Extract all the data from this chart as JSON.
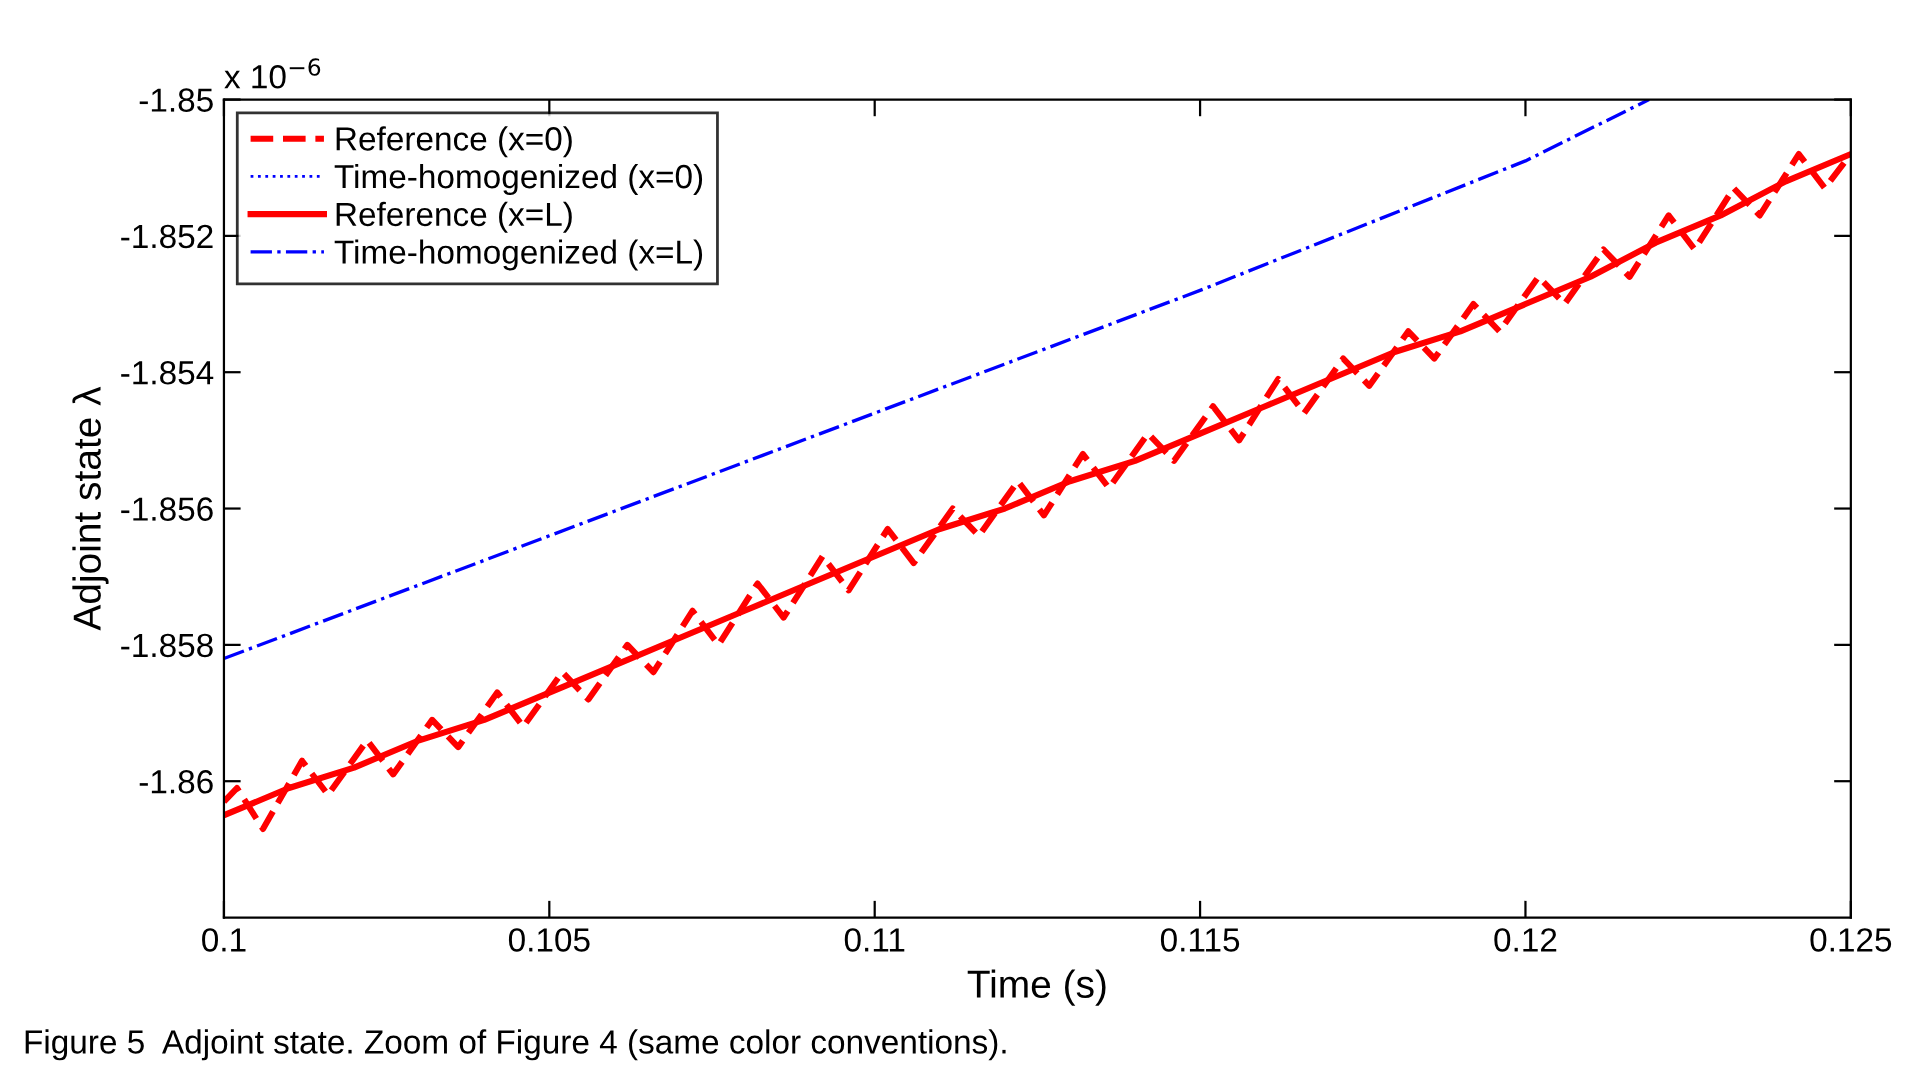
{
  "chart_data": {
    "type": "line",
    "xlabel": "Time (s)",
    "ylabel": "Adjoint state λ",
    "annotations": [
      "x 10$^{−6}$",
      "Figure 5  Adjoint state. Zoom of Figure 4 (same color conventions)."
    ],
    "xlim": [
      0.1,
      0.125
    ],
    "xticks": [
      0.1,
      0.105,
      0.11,
      0.115,
      0.12,
      0.125
    ],
    "ylim": [
      -1.862,
      -1.85
    ],
    "yticks": [
      -1.86,
      -1.858,
      -1.856,
      -1.854,
      -1.852,
      -1.85
    ],
    "grid": false,
    "legend": "top left",
    "marker": "none",
    "series": [
      {
        "name": "Reference (x=0)",
        "color": "#ff0000",
        "line_style": "dashed",
        "x": [
          0.1,
          0.1002,
          0.1006,
          0.1012,
          0.1016,
          0.1022,
          0.1026,
          0.1032,
          0.1036,
          0.1042,
          0.1046,
          0.1052,
          0.1056,
          0.1062,
          0.1066,
          0.1072,
          0.1076,
          0.1082,
          0.1086,
          0.1092,
          0.1096,
          0.1102,
          0.1106,
          0.1112,
          0.1116,
          0.1122,
          0.1126,
          0.1132,
          0.1136,
          0.1142,
          0.1146,
          0.1152,
          0.1156,
          0.1162,
          0.1166,
          0.1172,
          0.1176,
          0.1182,
          0.1186,
          0.1192,
          0.1196,
          0.1202,
          0.1206,
          0.1212,
          0.1216,
          0.1222,
          0.1226,
          0.1232,
          0.1236,
          0.1242,
          0.1246,
          0.125
        ],
        "values": [
          -1.8603,
          -1.8601,
          -1.8607,
          -1.8597,
          -1.8602,
          -1.8594,
          -1.8599,
          -1.8591,
          -1.8595,
          -1.8587,
          -1.8592,
          -1.8584,
          -1.8588,
          -1.858,
          -1.8584,
          -1.8575,
          -1.858,
          -1.8571,
          -1.8576,
          -1.8567,
          -1.8572,
          -1.8563,
          -1.8568,
          -1.856,
          -1.8564,
          -1.8556,
          -1.8561,
          -1.8552,
          -1.8557,
          -1.8549,
          -1.8553,
          -1.8545,
          -1.855,
          -1.8541,
          -1.8546,
          -1.8538,
          -1.8542,
          -1.8534,
          -1.8538,
          -1.853,
          -1.8534,
          -1.8526,
          -1.853,
          -1.8522,
          -1.8526,
          -1.8517,
          -1.8522,
          -1.8513,
          -1.8517,
          -1.8508,
          -1.8513,
          -1.8508
        ]
      },
      {
        "name": "Time-homogenized (x=0)",
        "color": "#0000ff",
        "line_style": "dotted"
      },
      {
        "name": "Reference (x=L)",
        "color": "#ff0000",
        "line_style": "solid",
        "x": [
          0.1,
          0.101,
          0.102,
          0.103,
          0.104,
          0.105,
          0.106,
          0.107,
          0.108,
          0.109,
          0.11,
          0.111,
          0.112,
          0.113,
          0.114,
          0.115,
          0.116,
          0.117,
          0.118,
          0.119,
          0.12,
          0.121,
          0.122,
          0.123,
          0.124,
          0.125
        ],
        "values": [
          -1.8605,
          -1.8601,
          -1.8598,
          -1.8594,
          -1.8591,
          -1.8587,
          -1.8583,
          -1.8579,
          -1.8575,
          -1.8571,
          -1.8567,
          -1.8563,
          -1.856,
          -1.8556,
          -1.8553,
          -1.8549,
          -1.8545,
          -1.8541,
          -1.8537,
          -1.8534,
          -1.853,
          -1.8526,
          -1.8521,
          -1.8517,
          -1.8512,
          -1.8508
        ]
      },
      {
        "name": "Time-homogenized (x=L)",
        "color": "#0000ff",
        "line_style": "dashdot",
        "x": [
          0.1,
          0.105,
          0.11,
          0.115,
          0.12,
          0.1219
        ],
        "values": [
          -1.8582,
          -1.8564,
          -1.8546,
          -1.8528,
          -1.8509,
          -1.85
        ]
      }
    ]
  }
}
